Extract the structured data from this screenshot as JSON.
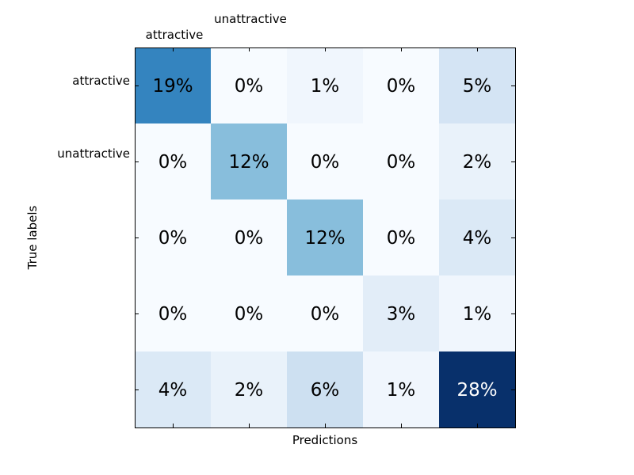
{
  "chart_data": {
    "type": "heatmap",
    "title": "",
    "xlabel": "Predictions",
    "ylabel": "True labels",
    "x_tick_labels": [
      "attractive",
      "unattractive",
      "",
      "",
      ""
    ],
    "y_tick_labels": [
      "attractive",
      "unattractive",
      "",
      "",
      ""
    ],
    "values": [
      [
        19,
        0,
        1,
        0,
        5
      ],
      [
        0,
        12,
        0,
        0,
        2
      ],
      [
        0,
        0,
        12,
        0,
        4
      ],
      [
        0,
        0,
        0,
        3,
        1
      ],
      [
        4,
        2,
        6,
        1,
        28
      ]
    ],
    "cell_labels": [
      [
        "19%",
        "0%",
        "1%",
        "0%",
        "5%"
      ],
      [
        "0%",
        "12%",
        "0%",
        "0%",
        "2%"
      ],
      [
        "0%",
        "0%",
        "12%",
        "0%",
        "4%"
      ],
      [
        "0%",
        "0%",
        "0%",
        "3%",
        "1%"
      ],
      [
        "4%",
        "2%",
        "6%",
        "1%",
        "28%"
      ]
    ],
    "unit": "%",
    "colormap": "Blues",
    "color_min": "#f7fbff",
    "color_max": "#08306b",
    "vmin": 0,
    "vmax": 28,
    "grid": false,
    "legend": "none"
  }
}
